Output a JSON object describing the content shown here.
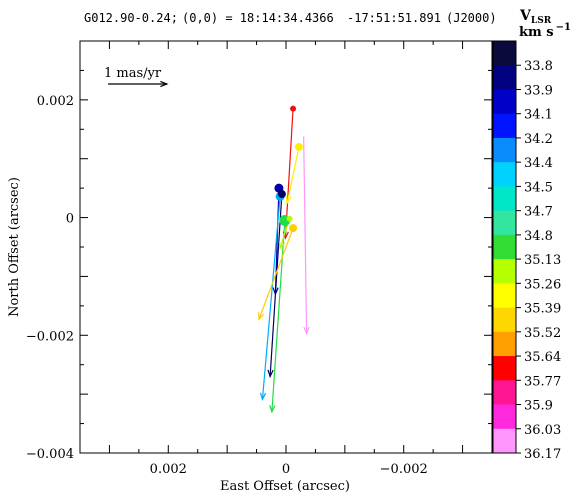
{
  "header": {
    "source": "G012.90-0.24;",
    "origin": "(0,0) = 18:14:34.4366",
    "dec": "-17:51:51.891",
    "frame": "(J2000)"
  },
  "chart_data": {
    "type": "scatter",
    "subtype": "proper-motion vector map",
    "xlabel": "East Offset (arcsec)",
    "ylabel": "North Offset (arcsec)",
    "xlim": [
      0.0035,
      -0.0035
    ],
    "ylim": [
      -0.004,
      0.003
    ],
    "x_ticks": [
      0.002,
      0,
      -0.002
    ],
    "x_tick_labels": [
      "0.002",
      "0",
      "−0.002"
    ],
    "y_ticks": [
      0.002,
      0,
      -0.002,
      -0.004
    ],
    "y_tick_labels": [
      "0.002",
      "0",
      "−0.002",
      "−0.004"
    ],
    "grid": false,
    "scale_bar": {
      "label": "1 mas/yr",
      "length_arcsec": 0.001
    },
    "colorbar": {
      "title": "V",
      "title_sub": "LSR",
      "unit_text": "km s",
      "unit_exp": "−1",
      "labels": [
        "33.8",
        "33.9",
        "34.1",
        "34.2",
        "34.4",
        "34.5",
        "34.7",
        "34.8",
        "35.13",
        "35.26",
        "35.39",
        "35.52",
        "35.64",
        "35.77",
        "35.9",
        "36.03",
        "36.17"
      ],
      "colors": [
        "#0a0a3c",
        "#000080",
        "#0000c8",
        "#0014ff",
        "#0a8cff",
        "#00d2ff",
        "#00e6c8",
        "#32e6a0",
        "#32dc32",
        "#b4ff00",
        "#ffff00",
        "#ffd700",
        "#ffa000",
        "#ff0000",
        "#ff1493",
        "#ff28dc",
        "#ff96ff"
      ]
    },
    "spots": [
      {
        "x": 0.00012,
        "y": 0.0005,
        "color": "#0000aa",
        "r": 4.5,
        "dx": 6e-05,
        "dy": -0.0018
      },
      {
        "x": 0.0001,
        "y": 0.00036,
        "color": "#00aaff",
        "r": 4.5,
        "dx": 0.0003,
        "dy": -0.00345
      },
      {
        "x": 7e-05,
        "y": 0.0004,
        "color": "#000060",
        "r": 4,
        "dx": 0.0002,
        "dy": -0.0031
      },
      {
        "x": -0.00012,
        "y": 0.00185,
        "color": "#ee1111",
        "r": 3,
        "dx": 0.00013,
        "dy": -0.0022
      },
      {
        "x": -0.00022,
        "y": 0.0012,
        "color": "#ffee00",
        "r": 4,
        "dx": 0.0002,
        "dy": -0.00095
      },
      {
        "x": 2e-05,
        "y": -5e-05,
        "color": "#22dd44",
        "r": 5.5,
        "dx": 0.00022,
        "dy": -0.00325
      },
      {
        "x": -0.00012,
        "y": -0.00018,
        "color": "#ffcc00",
        "r": 4,
        "dx": 0.00058,
        "dy": -0.00155
      },
      {
        "x": -6e-05,
        "y": -2e-05,
        "color": "#b4ff00",
        "r": 3,
        "dx": 0.00016,
        "dy": -0.0005
      },
      {
        "x": -0.0003,
        "y": 0.00138,
        "color": "#ff96ff",
        "r": 0,
        "dx": -5e-05,
        "dy": -0.00335
      }
    ]
  }
}
